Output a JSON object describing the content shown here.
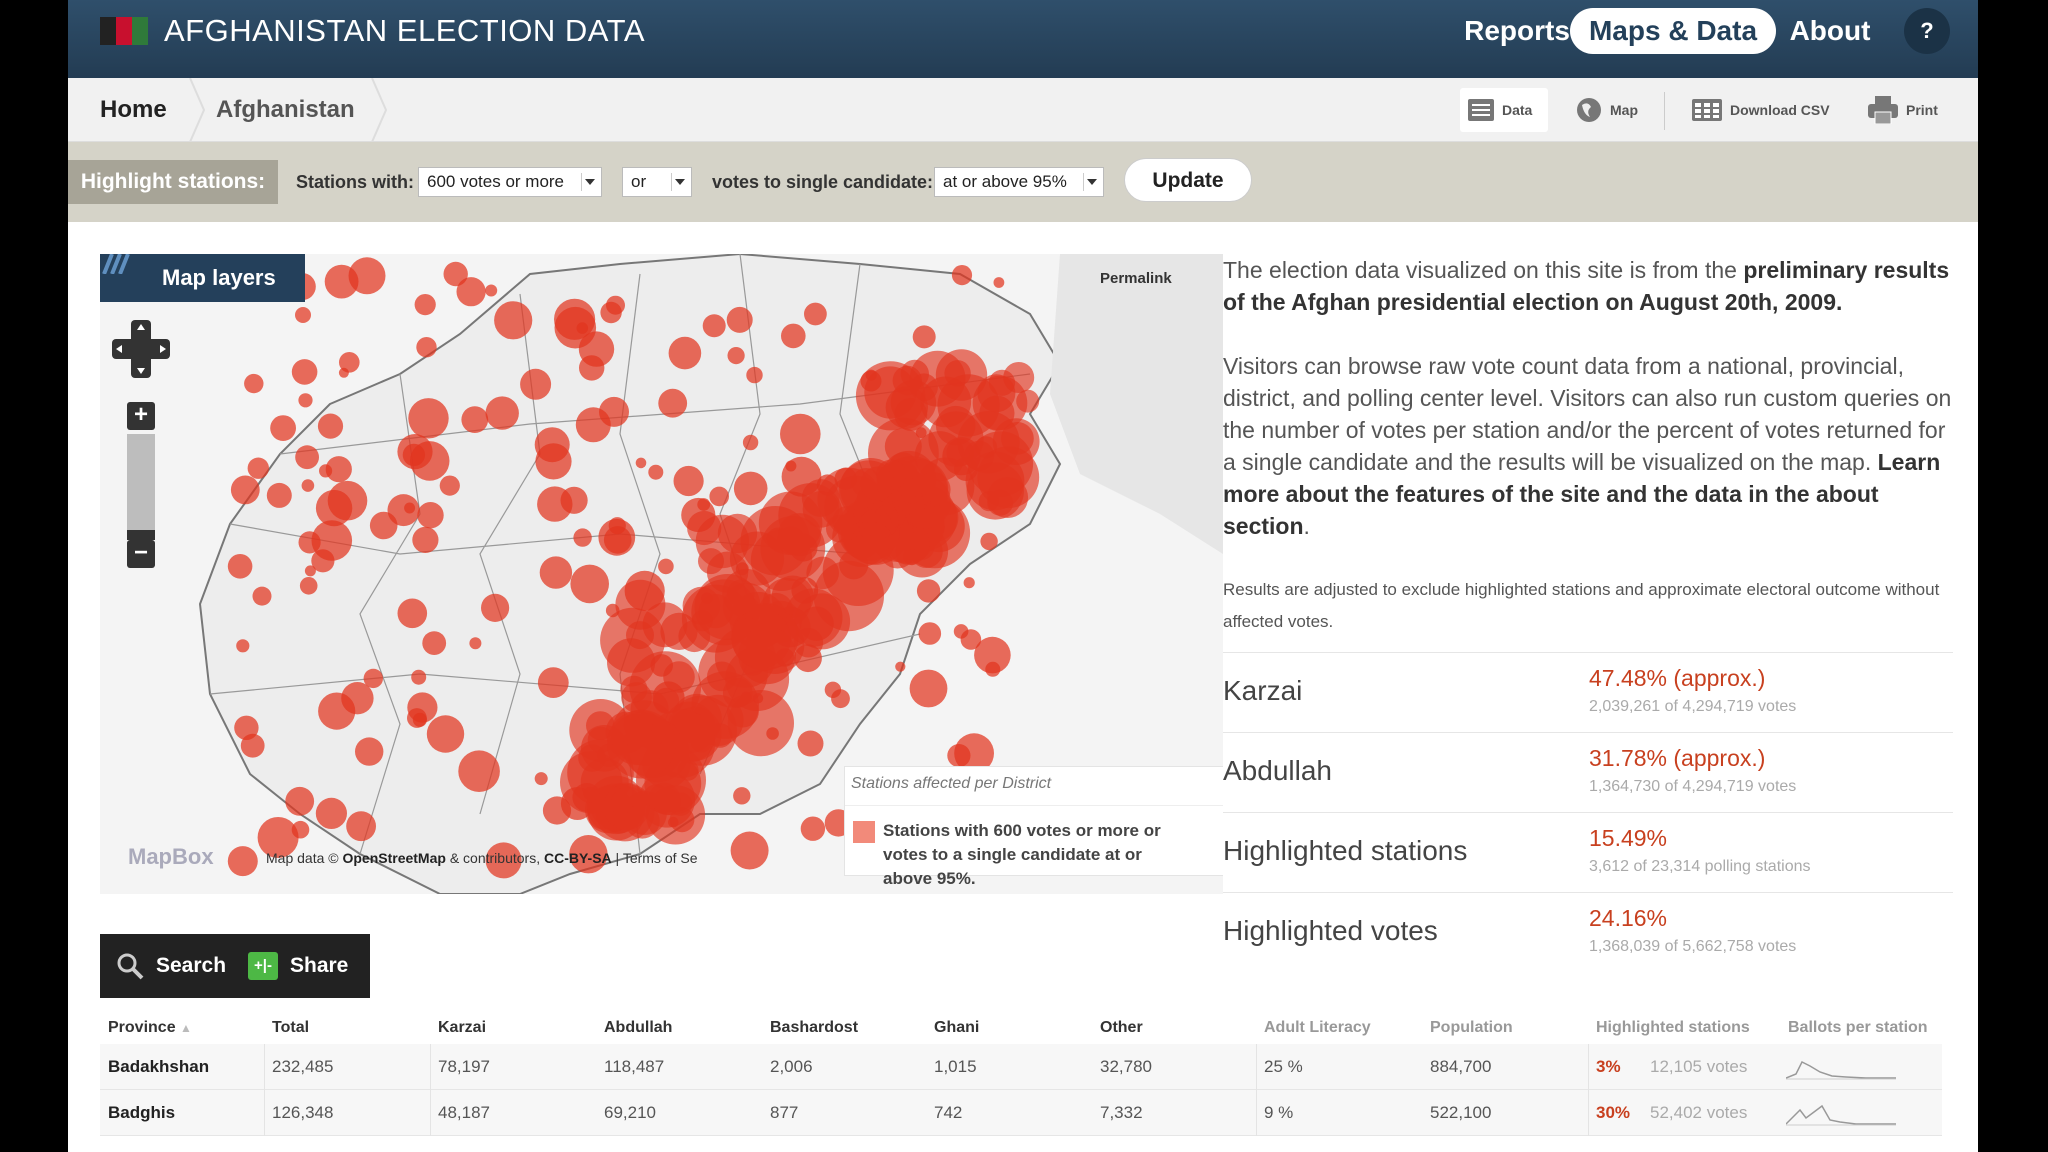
{
  "header": {
    "title": "AFGHANISTAN ELECTION DATA",
    "nav": {
      "reports": "Reports",
      "maps": "Maps & Data",
      "about": "About",
      "help": "?"
    },
    "flag_colors": [
      "#222222",
      "#c8102e",
      "#2f7a3a"
    ]
  },
  "breadcrumb": {
    "home": "Home",
    "current": "Afghanistan"
  },
  "tools": {
    "data": "Data",
    "map": "Map",
    "csv": "Download CSV",
    "print": "Print"
  },
  "highlight": {
    "label": "Highlight stations:",
    "stations_with": "Stations with:",
    "votes_select": "600 votes or more",
    "logic_select": "or",
    "single_candidate": "votes to single candidate:",
    "threshold_select": "at or above 95%",
    "update": "Update"
  },
  "map": {
    "layers": "Map layers",
    "permalink": "Permalink",
    "zoom_in": "+",
    "zoom_out": "−",
    "logo": "MapBox",
    "attr_prefix": "Map data ©",
    "attr_osm": "OpenStreetMap",
    "attr_mid": "& contributors,",
    "attr_cc": "CC-BY-SA",
    "attr_terms": "| Terms of Se",
    "legend_title": "Stations affected per District",
    "legend_text": "Stations with 600 votes or more or votes to a single candidate at or above 95%.",
    "marker_color": "#e2341f"
  },
  "intro": {
    "p1_a": "The election data visualized on this site is from the ",
    "p1_b": "preliminary results of the Afghan presidential election on August 20th, 2009.",
    "p2_a": "Visitors can browse raw vote count data from a national, provincial, district, and polling center level. Visitors can also run custom queries on the number of votes per station and/or the percent of votes returned for a single candidate and the results will be visualized on the map. ",
    "p2_b": "Learn more about the features of the site and the data in the about section",
    "p2_c": ".",
    "note": "Results are adjusted to exclude highlighted stations and approximate electoral outcome without affected votes."
  },
  "stats": [
    {
      "name": "Karzai",
      "value": "47.48% (approx.)",
      "sub": "2,039,261 of 4,294,719 votes"
    },
    {
      "name": "Abdullah",
      "value": "31.78% (approx.)",
      "sub": "1,364,730 of 4,294,719 votes"
    },
    {
      "name": "Highlighted stations",
      "value": "15.49%",
      "sub": "3,612 of 23,314 polling stations"
    },
    {
      "name": "Highlighted votes",
      "value": "24.16%",
      "sub": "1,368,039 of 5,662,758 votes"
    }
  ],
  "actions": {
    "search": "Search",
    "share": "Share",
    "share_icon": "+|-"
  },
  "table": {
    "headers": [
      "Province",
      "Total",
      "Karzai",
      "Abdullah",
      "Bashardost",
      "Ghani",
      "Other",
      "Adult Literacy",
      "Population",
      "Highlighted stations",
      "Ballots per station"
    ],
    "rows": [
      {
        "province": "Badakhshan",
        "total": "232,485",
        "karzai": "78,197",
        "abdullah": "118,487",
        "bashardost": "2,006",
        "ghani": "1,015",
        "other": "32,780",
        "literacy": "25 %",
        "population": "884,700",
        "hl_pct": "3%",
        "hl_votes": "12,105 votes"
      },
      {
        "province": "Badghis",
        "total": "126,348",
        "karzai": "48,187",
        "abdullah": "69,210",
        "bashardost": "877",
        "ghani": "742",
        "other": "7,332",
        "literacy": "9 %",
        "population": "522,100",
        "hl_pct": "30%",
        "hl_votes": "52,402 votes"
      }
    ]
  }
}
